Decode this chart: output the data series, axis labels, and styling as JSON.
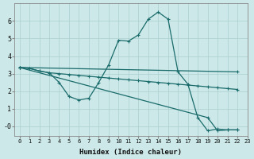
{
  "xlabel": "Humidex (Indice chaleur)",
  "background_color": "#cce8e8",
  "grid_color": "#aacfcf",
  "line_color": "#1a6b6b",
  "line0_x": [
    0,
    1,
    2,
    3,
    4,
    5,
    6,
    7,
    8,
    9,
    10,
    11,
    12,
    13,
    14,
    15,
    16,
    17,
    18,
    19,
    20,
    21,
    22
  ],
  "line0_y": [
    3.35,
    3.3,
    3.15,
    3.05,
    2.5,
    1.7,
    1.5,
    1.6,
    2.5,
    3.5,
    4.9,
    4.85,
    5.2,
    6.1,
    6.5,
    6.1,
    3.1,
    2.4,
    0.5,
    -0.25,
    -0.15,
    -0.2,
    -0.2
  ],
  "line1_x": [
    0,
    1,
    2,
    3,
    4,
    5,
    6,
    7,
    8,
    9,
    10,
    11,
    12,
    13,
    14,
    15,
    16,
    17,
    18,
    19,
    20,
    21,
    22
  ],
  "line1_y": [
    3.35,
    3.3,
    3.15,
    3.05,
    3.0,
    2.95,
    2.9,
    2.85,
    2.8,
    2.75,
    2.7,
    2.65,
    2.6,
    2.55,
    2.5,
    2.45,
    2.4,
    2.35,
    2.3,
    2.25,
    2.2,
    2.15,
    2.1
  ],
  "line2_x": [
    0,
    22
  ],
  "line2_y": [
    3.35,
    3.1
  ],
  "line3_x": [
    0,
    19,
    20,
    21,
    22
  ],
  "line3_y": [
    3.35,
    0.5,
    -0.25,
    -0.2,
    -0.2
  ],
  "ylim": [
    -0.55,
    7.0
  ],
  "xlim": [
    -0.5,
    23.0
  ],
  "xticks": [
    0,
    1,
    2,
    3,
    4,
    5,
    6,
    7,
    8,
    9,
    10,
    11,
    12,
    13,
    14,
    15,
    16,
    17,
    18,
    19,
    20,
    21,
    22,
    23
  ],
  "yticks": [
    0,
    1,
    2,
    3,
    4,
    5,
    6
  ],
  "ytick_labels": [
    "-0",
    "1",
    "2",
    "3",
    "4",
    "5",
    "6"
  ]
}
